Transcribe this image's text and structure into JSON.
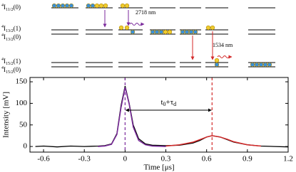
{
  "diagram": {
    "levels": [
      {
        "sup": "4",
        "term": "I",
        "sub": "11/2",
        "suffix": "(0)"
      },
      {
        "sup": "4",
        "term": "I",
        "sub": "13/2",
        "suffix": "(1)"
      },
      {
        "sup": "4",
        "term": "I",
        "sub": "13/2",
        "suffix": "(0)"
      },
      {
        "sup": "4",
        "term": "I",
        "sub": "15/2",
        "suffix": "(1)"
      },
      {
        "sup": "4",
        "term": "I",
        "sub": "15/2",
        "suffix": "(0)"
      }
    ],
    "annotations": [
      "2718 nm",
      "1534 nm"
    ]
  },
  "chart_data": {
    "type": "line",
    "xlabel": "Time [μs]",
    "ylabel": "Intensity [mV]",
    "annotation": {
      "parts": [
        "t",
        "0",
        "+τ",
        "d"
      ]
    },
    "x": [
      -0.66,
      -0.6,
      -0.5,
      -0.4,
      -0.3,
      -0.2,
      -0.15,
      -0.1,
      -0.06,
      -0.03,
      0,
      0.03,
      0.06,
      0.1,
      0.15,
      0.2,
      0.3,
      0.4,
      0.5,
      0.55,
      0.6,
      0.64,
      0.7,
      0.75,
      0.8,
      0.9,
      1.0,
      1.1,
      1.2
    ],
    "series": [
      {
        "color": "#000000",
        "values": [
          0,
          1,
          -1,
          1,
          0,
          1,
          2,
          6,
          30,
          95,
          140,
          100,
          50,
          18,
          6,
          3,
          2,
          3,
          8,
          14,
          22,
          25,
          22,
          16,
          10,
          4,
          1,
          0,
          -1
        ]
      },
      {
        "color": "#7b2a9c",
        "values": [
          null,
          null,
          null,
          null,
          null,
          0,
          1,
          5,
          28,
          90,
          137,
          98,
          45,
          14,
          4,
          1,
          0,
          null,
          null,
          null,
          null,
          null,
          null,
          null,
          null,
          null,
          null,
          null,
          null
        ]
      },
      {
        "color": "#d42a2a",
        "values": [
          null,
          null,
          null,
          null,
          null,
          null,
          null,
          null,
          null,
          null,
          null,
          null,
          null,
          null,
          null,
          null,
          1,
          4,
          10,
          16,
          22,
          25,
          22,
          17,
          11,
          4,
          1,
          null,
          null
        ]
      }
    ],
    "vlines": [
      {
        "x": 0,
        "color": "#7b2a9c"
      },
      {
        "x": 0.64,
        "color": "#d42a2a"
      }
    ],
    "xlim": [
      -0.7,
      1.2
    ],
    "ylim": [
      -13,
      160
    ],
    "xticks": [
      -0.6,
      -0.3,
      0,
      0.3,
      0.6,
      0.9,
      1.2
    ],
    "yticks": [
      0,
      50,
      100,
      150
    ]
  }
}
